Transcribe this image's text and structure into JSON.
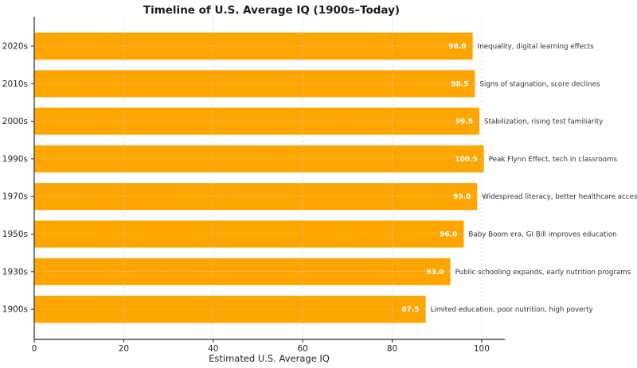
{
  "chart_data": {
    "type": "bar",
    "orientation": "horizontal",
    "title": "Timeline of U.S. Average IQ (1900s–Today)",
    "xlabel": "Estimated U.S. Average IQ",
    "ylabel": "",
    "categories": [
      "2020s",
      "2010s",
      "2000s",
      "1990s",
      "1970s",
      "1950s",
      "1930s",
      "1900s"
    ],
    "values": [
      98.0,
      98.5,
      99.5,
      100.5,
      99.0,
      96.0,
      93.0,
      87.5
    ],
    "annotations": [
      "Inequality, digital learning effects",
      "Signs of stagnation, score declines",
      "Stabilization, rising test familiarity",
      "Peak Flynn Effect, tech in classrooms",
      "Widespread literacy, better healthcare access",
      "Baby Boom era, GI Bill improves education",
      "Public schooling expands, early nutrition programs",
      "Limited education, poor nutrition, high poverty"
    ],
    "xticks": [
      0,
      20,
      40,
      60,
      80,
      100
    ],
    "xlim": [
      0,
      105
    ],
    "grid": true,
    "legend": null,
    "colors": {
      "bar": "#FFA500",
      "value_label": "#FFFFFF",
      "annotation": "#333333",
      "axis": "#262626",
      "grid": "#cccccc",
      "background": "#FFFFFF"
    }
  }
}
